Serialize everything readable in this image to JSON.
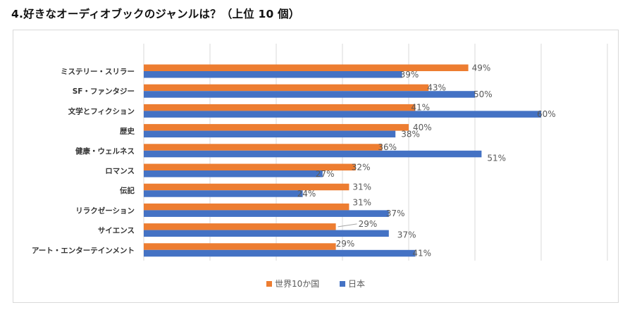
{
  "page_title": "4.好きなオーディオブックのジャンルは？（上位 10 個）",
  "chart_data": {
    "type": "bar",
    "orientation": "horizontal",
    "title": "4.好きなオーディオブックのジャンルは？（上位 10 個）",
    "xlabel": "",
    "ylabel": "",
    "xlim": [
      0,
      70
    ],
    "grid": true,
    "legend_position": "bottom",
    "categories": [
      "ミステリー・スリラー",
      "SF・ファンタジー",
      "文学とフィクション",
      "歴史",
      "健康・ウェルネス",
      "ロマンス",
      "伝記",
      "リラクゼーション",
      "サイエンス",
      "アート・エンターテインメント"
    ],
    "series": [
      {
        "name": "世界10か国",
        "color": "#ED7D31",
        "values": [
          49,
          43,
          41,
          40,
          36,
          32,
          31,
          31,
          29,
          29
        ],
        "labels": [
          "49%",
          "43%",
          "41%",
          "40%",
          "36%",
          "32%",
          "31%",
          "31%",
          "29%",
          "29%"
        ]
      },
      {
        "name": "日本",
        "color": "#4472C4",
        "values": [
          39,
          50,
          60,
          38,
          51,
          27,
          24,
          37,
          37,
          41
        ],
        "labels": [
          "39%",
          "50%",
          "60%",
          "38%",
          "51%",
          "27%",
          "24%",
          "37%",
          "37%",
          "41%"
        ]
      }
    ]
  }
}
